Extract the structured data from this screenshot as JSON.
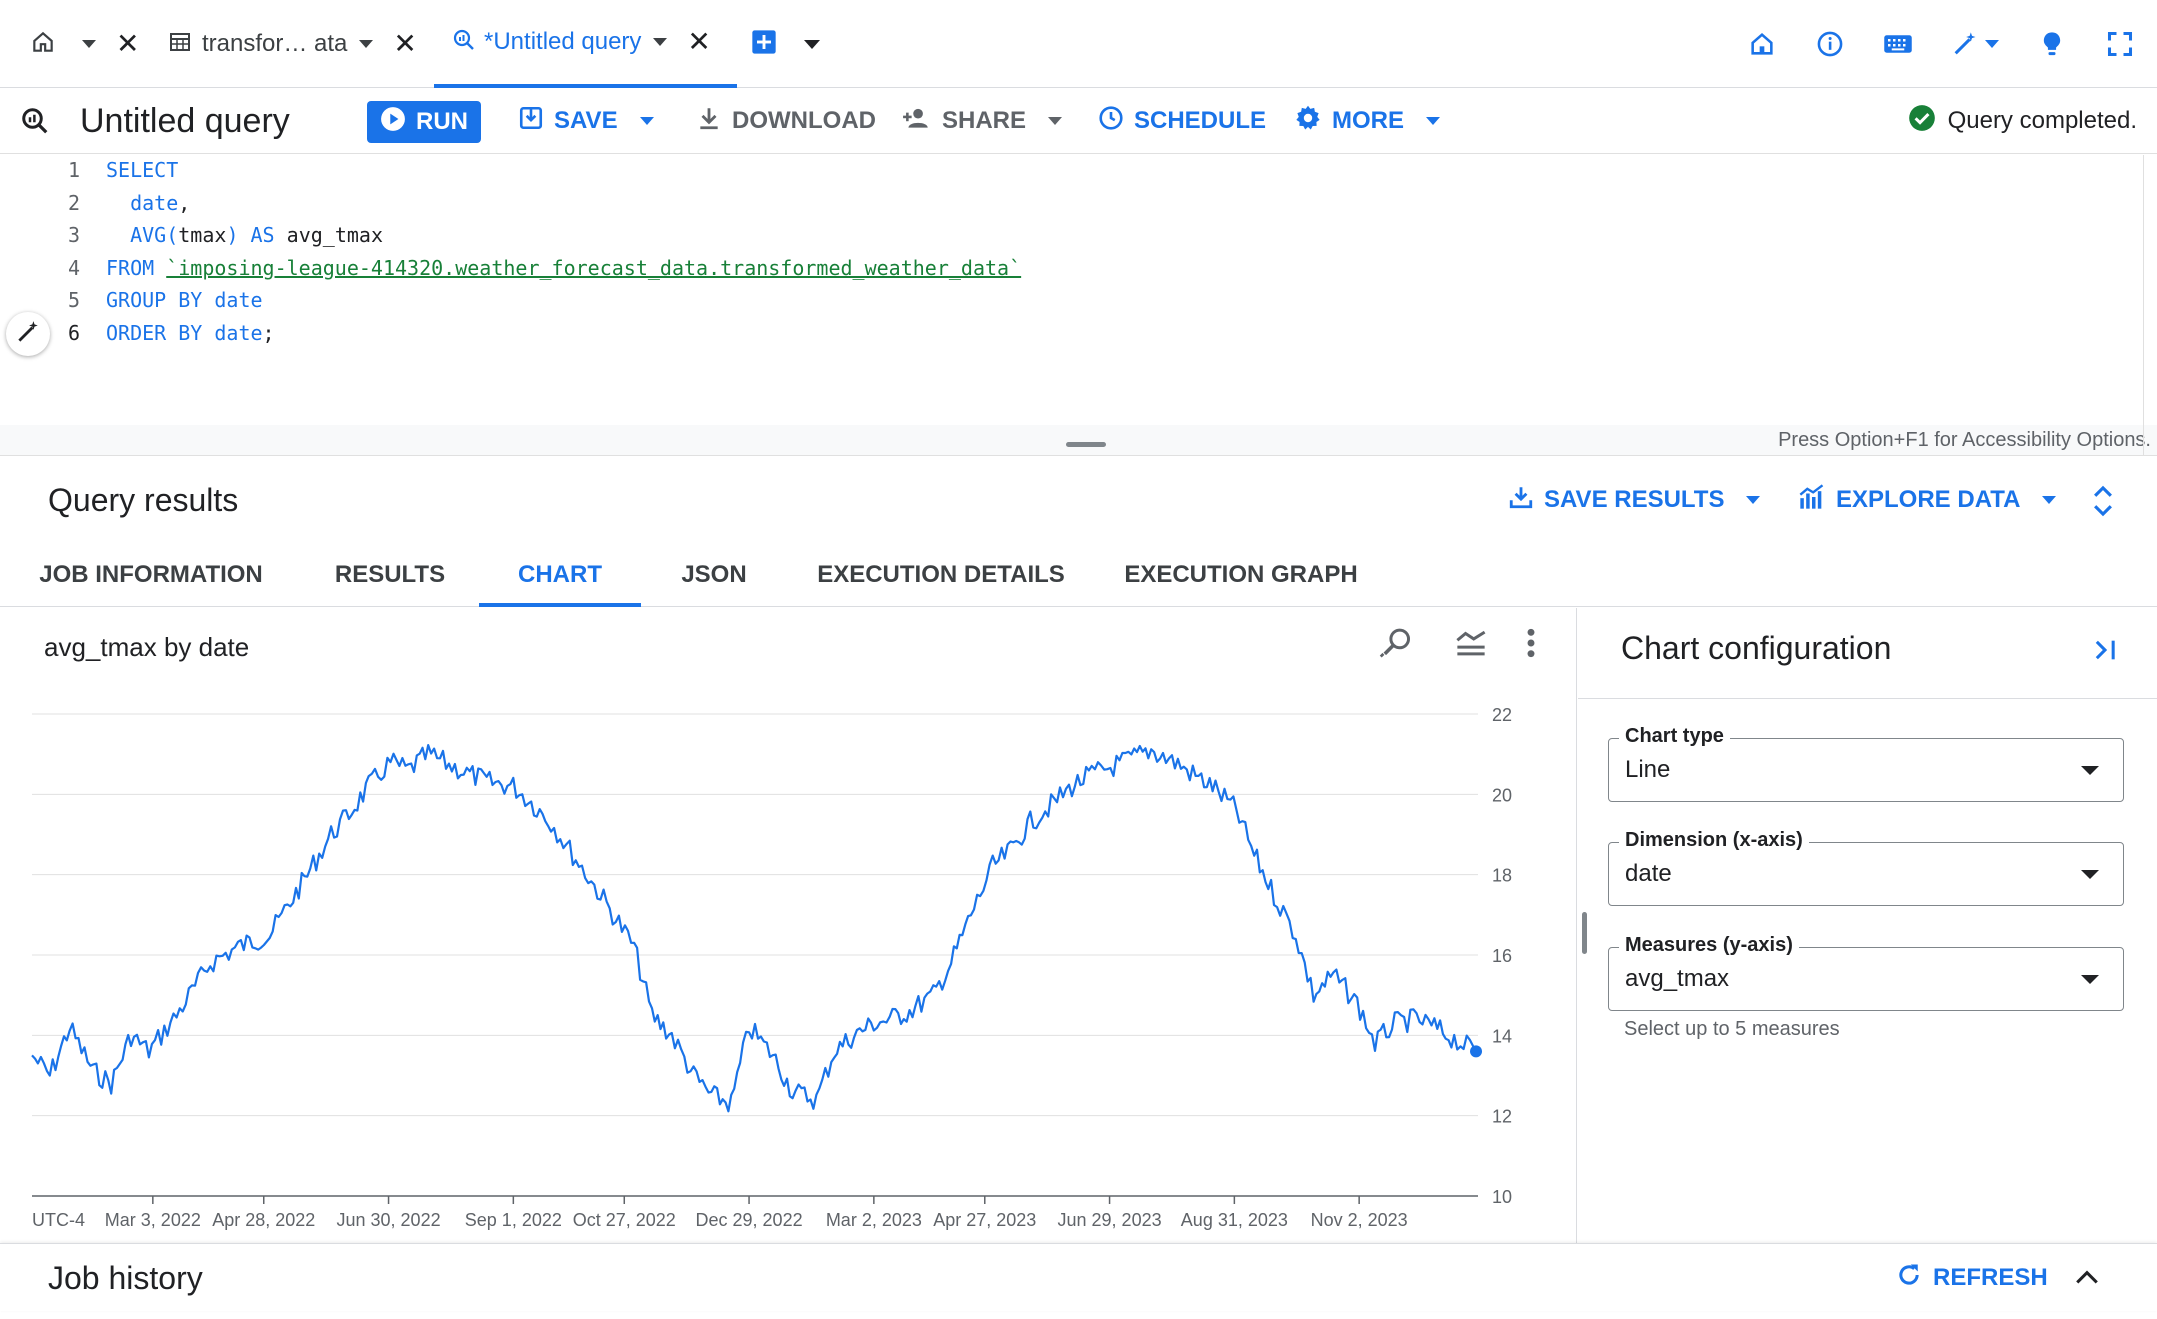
{
  "tabs": [
    {
      "label": ""
    },
    {
      "label": "transfor…  ata"
    },
    {
      "label": "*Untitled query"
    }
  ],
  "top_icons": [
    "home-icon",
    "info-icon",
    "keyboard-icon",
    "magic-wand-icon",
    "lightbulb-icon",
    "fullscreen-icon"
  ],
  "toolbar": {
    "title": "Untitled query",
    "run_label": "RUN",
    "save_label": "SAVE",
    "download_label": "DOWNLOAD",
    "share_label": "SHARE",
    "schedule_label": "SCHEDULE",
    "more_label": "MORE",
    "status": "Query completed."
  },
  "editor": {
    "lines": [
      {
        "n": "1",
        "parts": [
          {
            "t": "SELECT",
            "c": "kw"
          }
        ]
      },
      {
        "n": "2",
        "parts": [
          {
            "t": "  "
          },
          {
            "t": "date",
            "c": "kw"
          },
          {
            "t": ","
          }
        ]
      },
      {
        "n": "3",
        "parts": [
          {
            "t": "  "
          },
          {
            "t": "AVG(",
            "c": "kw"
          },
          {
            "t": "tmax"
          },
          {
            "t": ") AS",
            "c": "kw"
          },
          {
            "t": " avg_tmax"
          }
        ]
      },
      {
        "n": "4",
        "parts": [
          {
            "t": "FROM ",
            "c": "kw"
          },
          {
            "t": "`imposing-league-414320.weather_forecast_data.transformed_weather_data`",
            "c": "str"
          }
        ]
      },
      {
        "n": "5",
        "parts": [
          {
            "t": "GROUP BY date",
            "c": "kw"
          }
        ]
      },
      {
        "n": "6",
        "parts": [
          {
            "t": "ORDER BY date",
            "c": "kw"
          },
          {
            "t": ";"
          }
        ]
      }
    ],
    "a11y_hint": "Press Option+F1 for Accessibility Options."
  },
  "results": {
    "title": "Query results",
    "save_results_label": "SAVE RESULTS",
    "explore_data_label": "EXPLORE DATA",
    "tabs": [
      "JOB INFORMATION",
      "RESULTS",
      "CHART",
      "JSON",
      "EXECUTION DETAILS",
      "EXECUTION GRAPH"
    ],
    "active_tab": "CHART"
  },
  "chart": {
    "title": "avg_tmax by date"
  },
  "chart_data": {
    "type": "line",
    "title": "avg_tmax by date",
    "xlabel": "",
    "ylabel": "",
    "timezone_label": "UTC-4",
    "x_ticks": [
      "Mar 3, 2022",
      "Apr 28, 2022",
      "Jun 30, 2022",
      "Sep 1, 2022",
      "Oct 27, 2022",
      "Dec 29, 2022",
      "Mar 2, 2023",
      "Apr 27, 2023",
      "Jun 29, 2023",
      "Aug 31, 2023",
      "Nov 2, 2023"
    ],
    "x_range": [
      "2022-01-01",
      "2024-01-01"
    ],
    "ylim": [
      10,
      22
    ],
    "y_ticks": [
      10,
      12,
      14,
      16,
      18,
      20,
      22
    ],
    "grid": true,
    "legend": "none",
    "color": "#1a73e8",
    "series": [
      {
        "x": [
          "2022-01-01",
          "2022-01-10",
          "2022-01-20",
          "2022-02-01",
          "2022-02-10",
          "2022-02-20",
          "2022-03-01",
          "2022-03-15",
          "2022-04-01",
          "2022-04-15",
          "2022-05-01",
          "2022-05-10",
          "2022-05-20",
          "2022-06-01",
          "2022-06-10",
          "2022-06-20",
          "2022-07-01",
          "2022-07-10",
          "2022-07-20",
          "2022-08-01",
          "2022-08-10",
          "2022-08-20",
          "2022-09-01",
          "2022-09-10",
          "2022-09-20",
          "2022-10-01",
          "2022-10-15",
          "2022-11-01",
          "2022-11-10",
          "2022-11-20",
          "2022-12-01",
          "2022-12-10",
          "2022-12-20",
          "2022-12-29",
          "2023-01-10",
          "2023-01-20",
          "2023-02-01",
          "2023-02-10",
          "2023-02-20",
          "2023-03-02",
          "2023-03-10",
          "2023-03-20",
          "2023-04-01",
          "2023-04-10",
          "2023-04-20",
          "2023-05-01",
          "2023-05-10",
          "2023-05-20",
          "2023-06-01",
          "2023-06-10",
          "2023-06-20",
          "2023-07-01",
          "2023-07-10",
          "2023-07-20",
          "2023-08-01",
          "2023-08-10",
          "2023-08-20",
          "2023-09-01",
          "2023-09-10",
          "2023-09-20",
          "2023-10-01",
          "2023-10-10",
          "2023-10-20",
          "2023-11-01",
          "2023-11-10",
          "2023-11-20",
          "2023-12-01",
          "2023-12-10",
          "2023-12-20",
          "2023-12-31"
        ],
        "values": [
          13.5,
          13.0,
          14.2,
          13.1,
          12.8,
          14.0,
          13.6,
          14.5,
          15.8,
          16.2,
          16.5,
          17.2,
          18.0,
          19.0,
          19.5,
          20.2,
          20.8,
          20.6,
          21.0,
          20.7,
          20.5,
          20.3,
          20.2,
          19.8,
          19.3,
          18.5,
          17.5,
          16.2,
          14.5,
          14.0,
          13.0,
          12.5,
          12.3,
          14.2,
          13.5,
          12.6,
          12.4,
          13.6,
          14.0,
          14.3,
          14.4,
          14.6,
          15.0,
          15.8,
          17.0,
          18.2,
          18.6,
          19.3,
          19.8,
          20.2,
          20.5,
          20.7,
          20.9,
          21.1,
          20.8,
          20.5,
          20.2,
          19.6,
          18.5,
          17.5,
          16.5,
          15.0,
          15.5,
          14.8,
          13.8,
          14.3,
          14.4,
          14.2,
          13.9,
          13.6
        ]
      }
    ]
  },
  "config": {
    "title": "Chart configuration",
    "fields": [
      {
        "label": "Chart type",
        "value": "Line"
      },
      {
        "label": "Dimension (x-axis)",
        "value": "date"
      },
      {
        "label": "Measures (y-axis)",
        "value": "avg_tmax"
      }
    ],
    "hint": "Select up to 5 measures"
  },
  "job_history": {
    "title": "Job history",
    "refresh_label": "REFRESH"
  }
}
